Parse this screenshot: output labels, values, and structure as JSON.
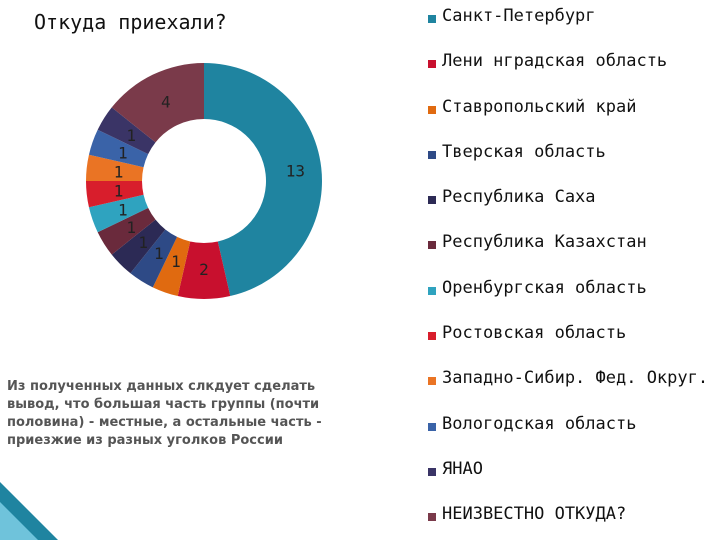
{
  "chart_data": {
    "type": "pie",
    "donut": true,
    "title": "Откуда приехали?",
    "legend_position": "right",
    "series": [
      {
        "name": "Санкт-Петербург",
        "value": 13,
        "color": "#1f84a0"
      },
      {
        "name": "Лени нградская область",
        "value": 2,
        "color": "#c8102e"
      },
      {
        "name": "Ставропольский край",
        "value": 1,
        "color": "#e06a10"
      },
      {
        "name": "Тверская область",
        "value": 1,
        "color": "#2e4a86"
      },
      {
        "name": "Республика Саха",
        "value": 1,
        "color": "#2c2a55"
      },
      {
        "name": "Республика Казахстан",
        "value": 1,
        "color": "#6a2a3c"
      },
      {
        "name": "Оренбургская область",
        "value": 1,
        "color": "#2fa3bf"
      },
      {
        "name": "Ростовская область",
        "value": 1,
        "color": "#d81e2c"
      },
      {
        "name": "Западно-Сибир. Фед. Округ.",
        "value": 1,
        "color": "#ea7424"
      },
      {
        "name": "Вологодская область",
        "value": 1,
        "color": "#3a63a8"
      },
      {
        "name": "ЯНАО",
        "value": 1,
        "color": "#3a3466"
      },
      {
        "name": "НЕИЗВЕСТНО ОТКУДА?",
        "value": 4,
        "color": "#7a3a4a"
      }
    ]
  },
  "conclusion": "Из полученных данных слкдует сделать вывод, что большая часть группы (почти половина) - местные, а остальные часть - приезжие из разных уголков России",
  "accent_color": "#1f84a0"
}
